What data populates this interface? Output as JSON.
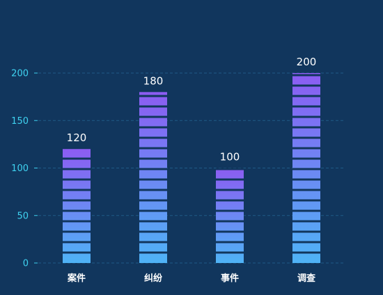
{
  "chart_data": {
    "type": "bar",
    "title": "",
    "xlabel": "",
    "ylabel": "",
    "categories": [
      "案件",
      "纠纷",
      "事件",
      "调查"
    ],
    "values": [
      120,
      180,
      100,
      200
    ],
    "ylim": [
      0,
      200
    ],
    "yticks": [
      0,
      50,
      100,
      150,
      200
    ],
    "grid": true,
    "bar_style": "segmented vertical gradient",
    "colors": {
      "background": "#11365d",
      "bar_bottom": "#4fb3f6",
      "bar_top": "#8c5cf2",
      "grid": "#1f5a86",
      "y_tick_label": "#3fd2f0",
      "x_tick_label": "#ffffff",
      "data_label": "#ffffff"
    }
  }
}
